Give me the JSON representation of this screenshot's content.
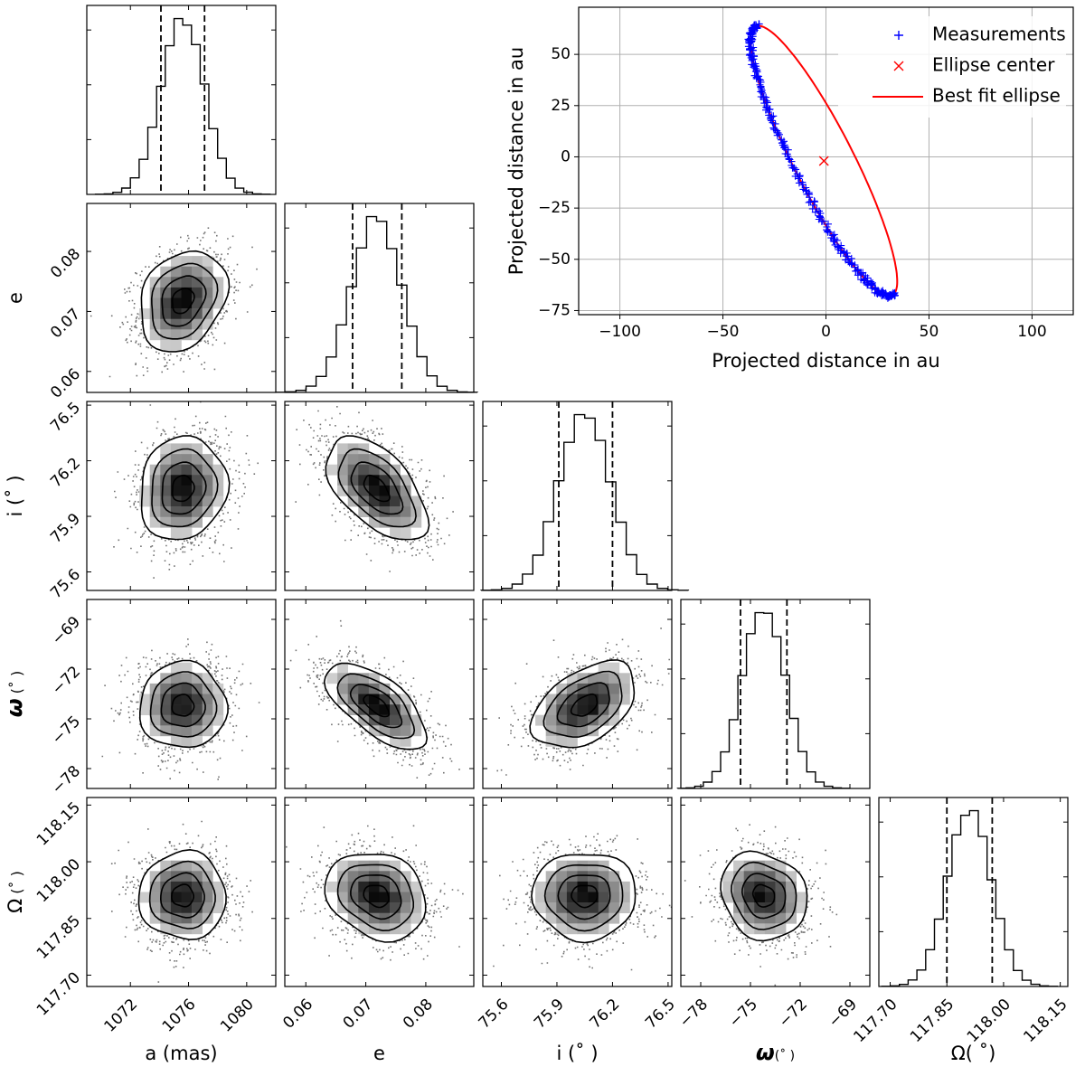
{
  "chart_data": [
    {
      "type": "corner",
      "parameters": [
        {
          "key": "a",
          "xlabel": "a (mas)",
          "ylabel": "",
          "range": [
            1069,
            1082
          ],
          "ticks": [
            1072,
            1076,
            1080
          ],
          "tick_labels": [
            "1072",
            "1076",
            "1080"
          ],
          "center": 1075.6,
          "sigma": 1.5,
          "quantiles": [
            1074.1,
            1077.1
          ]
        },
        {
          "key": "e",
          "xlabel": "e",
          "ylabel": "e",
          "range": [
            0.0565,
            0.088
          ],
          "ticks": [
            0.06,
            0.07,
            0.08
          ],
          "tick_labels": [
            "0.06",
            "0.07",
            "0.08"
          ],
          "center": 0.0718,
          "sigma": 0.0042,
          "quantiles": [
            0.0678,
            0.076
          ]
        },
        {
          "key": "i",
          "xlabel": "i (˚ )",
          "ylabel": "i (˚ )",
          "range": [
            75.5,
            76.52
          ],
          "ticks": [
            75.6,
            75.9,
            76.2,
            76.5
          ],
          "tick_labels": [
            "75.6",
            "75.9",
            "76.2",
            "76.5"
          ],
          "center": 76.05,
          "sigma": 0.14,
          "quantiles": [
            75.91,
            76.2
          ]
        },
        {
          "key": "omega",
          "xlabel": "ω",
          "xunit": "(˚ )",
          "ylabel": "ω",
          "yunit": "(˚ )",
          "range": [
            -79.2,
            -67.8
          ],
          "ticks": [
            -78,
            -75,
            -72,
            -69
          ],
          "tick_labels": [
            "−78",
            "−75",
            "−72",
            "−69"
          ],
          "center": -74.2,
          "sigma": 1.3,
          "quantiles": [
            -75.6,
            -72.8
          ]
        },
        {
          "key": "Omega",
          "xlabel": "Ω(  ˚)",
          "ylabel": "Ω",
          "yunit": "(˚ )",
          "range": [
            117.67,
            118.17
          ],
          "ticks": [
            117.7,
            117.85,
            118.0,
            118.15
          ],
          "tick_labels": [
            "117.70",
            "117.85",
            "118.00",
            "118.15"
          ],
          "center": 117.91,
          "sigma": 0.058,
          "quantiles": [
            117.85,
            117.97
          ]
        }
      ],
      "correlations": [
        {
          "pair": [
            "a",
            "e"
          ],
          "rho": 0.25
        },
        {
          "pair": [
            "a",
            "i"
          ],
          "rho": 0.1
        },
        {
          "pair": [
            "e",
            "i"
          ],
          "rho": -0.55
        },
        {
          "pair": [
            "a",
            "omega"
          ],
          "rho": 0.0
        },
        {
          "pair": [
            "e",
            "omega"
          ],
          "rho": -0.65
        },
        {
          "pair": [
            "i",
            "omega"
          ],
          "rho": 0.45
        },
        {
          "pair": [
            "a",
            "Omega"
          ],
          "rho": 0.0
        },
        {
          "pair": [
            "e",
            "Omega"
          ],
          "rho": -0.2
        },
        {
          "pair": [
            "i",
            "Omega"
          ],
          "rho": 0.0
        },
        {
          "pair": [
            "omega",
            "Omega"
          ],
          "rho": -0.15
        }
      ],
      "contour_levels_sigma": [
        0.5,
        1.0,
        1.5,
        2.0
      ],
      "quantile_style": "dashed"
    },
    {
      "type": "scatter",
      "xlabel": "Projected distance in au",
      "ylabel": "Projected distance in au",
      "xlim": [
        -120,
        120
      ],
      "ylim": [
        -77,
        73
      ],
      "xticks": [
        -100,
        -50,
        0,
        50,
        100
      ],
      "xtick_labels": [
        "−100",
        "−50",
        "0",
        "50",
        "100"
      ],
      "yticks": [
        -75,
        -50,
        -25,
        0,
        25,
        50
      ],
      "ytick_labels": [
        "−75",
        "−50",
        "−25",
        "0",
        "25",
        "50"
      ],
      "grid": true,
      "legend_position": "top-right",
      "ellipse": {
        "center": [
          -1,
          -2
        ],
        "semi_major": 73.5,
        "semi_minor": 14.5,
        "angle_deg": 116.8
      },
      "series": [
        {
          "name": "Measurements",
          "marker": "+",
          "color": "#0000ff",
          "arc_from_deg": -5,
          "arc_to_deg": 185,
          "count": 300
        },
        {
          "name": "Ellipse center",
          "marker": "x",
          "color": "#ff0000",
          "x": -1,
          "y": -2
        },
        {
          "name": "Best fit ellipse",
          "marker": "line",
          "color": "#ff0000"
        }
      ]
    }
  ]
}
